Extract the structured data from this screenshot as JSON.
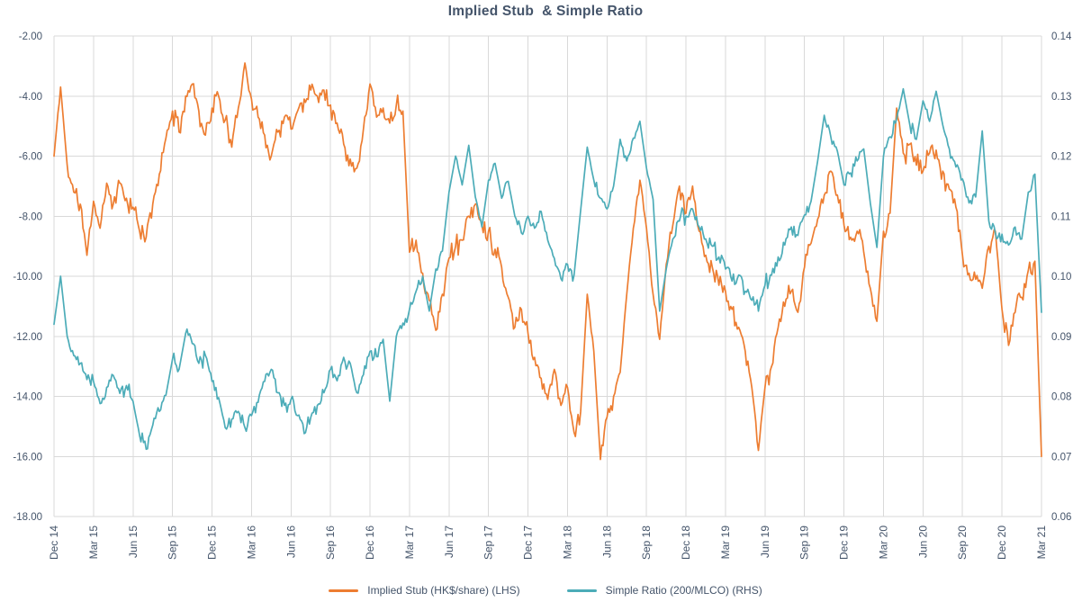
{
  "chart_data": {
    "type": "line",
    "title": "Implied Stub  & Simple Ratio",
    "x_resolution": "2 points per month, Dec 2014 - Mar 2021",
    "x_tick_labels": [
      "Dec 14",
      "Mar 15",
      "Jun 15",
      "Sep 15",
      "Dec 15",
      "Mar 16",
      "Jun 16",
      "Sep 16",
      "Dec 16",
      "Mar 17",
      "Jun 17",
      "Sep 17",
      "Dec 17",
      "Mar 18",
      "Jun 18",
      "Sep 18",
      "Dec 18",
      "Mar 19",
      "Jun 19",
      "Sep 19",
      "Dec 19",
      "Mar 20",
      "Jun 20",
      "Sep 20",
      "Dec 20",
      "Mar 21"
    ],
    "lhs_axis": {
      "tick_labels": [
        "-2.00",
        "-4.00",
        "-6.00",
        "-8.00",
        "-10.00",
        "-12.00",
        "-14.00",
        "-16.00",
        "-18.00"
      ],
      "max": -2,
      "min": -18
    },
    "rhs_axis": {
      "tick_labels": [
        "0.14",
        "0.13",
        "0.12",
        "0.11",
        "0.10",
        "0.09",
        "0.08",
        "0.07",
        "0.06"
      ],
      "max": 0.14,
      "min": 0.06
    },
    "grid": true,
    "legend_position": "bottom",
    "colors": {
      "grid": "#D9D9D9",
      "text": "#44546A",
      "background": "#FFFFFF",
      "implied_stub": "#ED7D31",
      "simple_ratio": "#4CACB8"
    },
    "series": [
      {
        "name": "Implied Stub (HK$/share) (LHS)",
        "axis": "lhs",
        "color": "#ED7D31",
        "values": [
          -6.0,
          -3.7,
          -6.3,
          -7.2,
          -7.6,
          -9.3,
          -7.5,
          -8.4,
          -6.9,
          -7.6,
          -6.9,
          -7.4,
          -7.7,
          -8.5,
          -8.7,
          -7.6,
          -6.6,
          -5.4,
          -4.5,
          -5.2,
          -4.0,
          -3.6,
          -4.5,
          -5.3,
          -4.4,
          -4.0,
          -4.8,
          -5.7,
          -4.4,
          -2.9,
          -4.1,
          -4.7,
          -5.3,
          -6.0,
          -5.2,
          -4.7,
          -5.1,
          -4.5,
          -4.1,
          -3.8,
          -4.0,
          -3.8,
          -4.3,
          -4.9,
          -5.6,
          -6.1,
          -6.4,
          -5.1,
          -3.6,
          -4.7,
          -4.4,
          -4.9,
          -4.3,
          -4.5,
          -9.2,
          -8.8,
          -9.9,
          -10.8,
          -11.8,
          -10.6,
          -9.4,
          -9.0,
          -8.8,
          -8.0,
          -7.6,
          -8.3,
          -8.5,
          -9.1,
          -9.7,
          -10.7,
          -11.7,
          -11.1,
          -11.9,
          -12.7,
          -13.4,
          -14.1,
          -13.1,
          -14.3,
          -13.7,
          -15.2,
          -14.5,
          -10.6,
          -12.5,
          -16.1,
          -14.7,
          -14.0,
          -13.2,
          -10.6,
          -8.4,
          -6.8,
          -8.4,
          -10.6,
          -12.1,
          -9.6,
          -8.3,
          -7.0,
          -7.9,
          -7.0,
          -8.5,
          -9.3,
          -9.7,
          -10.3,
          -10.5,
          -11.1,
          -11.7,
          -12.5,
          -13.7,
          -15.8,
          -13.7,
          -13.0,
          -11.7,
          -11.0,
          -10.5,
          -11.2,
          -9.7,
          -8.9,
          -8.1,
          -7.3,
          -6.5,
          -7.3,
          -8.3,
          -8.7,
          -8.5,
          -9.2,
          -10.4,
          -11.5,
          -8.5,
          -7.9,
          -4.4,
          -5.9,
          -5.6,
          -6.3,
          -6.5,
          -5.9,
          -5.8,
          -6.5,
          -7.1,
          -7.7,
          -9.3,
          -9.9,
          -10.1,
          -10.4,
          -9.0,
          -8.5,
          -11.1,
          -12.3,
          -11.2,
          -10.7,
          -9.8,
          -9.5,
          -16.0
        ]
      },
      {
        "name": "Simple Ratio (200/MLCO) (RHS)",
        "axis": "rhs",
        "color": "#4CACB8",
        "values": [
          0.092,
          0.1,
          0.09,
          0.0868,
          0.0855,
          0.0828,
          0.0825,
          0.0788,
          0.0815,
          0.0835,
          0.0805,
          0.0818,
          0.0792,
          0.0735,
          0.0712,
          0.0752,
          0.0775,
          0.0802,
          0.0862,
          0.0845,
          0.0905,
          0.0888,
          0.0855,
          0.0868,
          0.0825,
          0.0798,
          0.0748,
          0.0762,
          0.0775,
          0.0748,
          0.0768,
          0.079,
          0.0825,
          0.0845,
          0.0806,
          0.0785,
          0.0795,
          0.0768,
          0.0738,
          0.0765,
          0.0785,
          0.0806,
          0.0845,
          0.0826,
          0.0865,
          0.0855,
          0.0806,
          0.0836,
          0.0875,
          0.0866,
          0.0895,
          0.0792,
          0.09,
          0.0922,
          0.0945,
          0.0975,
          0.1,
          0.0942,
          0.1012,
          0.1042,
          0.114,
          0.12,
          0.1152,
          0.1218,
          0.1132,
          0.1082,
          0.116,
          0.1188,
          0.113,
          0.1158,
          0.11,
          0.1072,
          0.11,
          0.108,
          0.1108,
          0.106,
          0.103,
          0.0996,
          0.102,
          0.1002,
          0.111,
          0.1215,
          0.116,
          0.113,
          0.1112,
          0.115,
          0.1228,
          0.1192,
          0.123,
          0.1258,
          0.118,
          0.1128,
          0.0942,
          0.1012,
          0.1062,
          0.1092,
          0.11,
          0.1112,
          0.1082,
          0.1062,
          0.105,
          0.1032,
          0.1012,
          0.0992,
          0.1002,
          0.0975,
          0.096,
          0.0942,
          0.0985,
          0.1002,
          0.1032,
          0.1052,
          0.1082,
          0.1068,
          0.1102,
          0.1125,
          0.1192,
          0.1268,
          0.1232,
          0.1208,
          0.1152,
          0.1172,
          0.1192,
          0.1212,
          0.1122,
          0.1048,
          0.12,
          0.1232,
          0.1262,
          0.1312,
          0.1252,
          0.1228,
          0.1292,
          0.1258,
          0.1308,
          0.1252,
          0.1212,
          0.1182,
          0.1162,
          0.1122,
          0.1132,
          0.1242,
          0.1092,
          0.1072,
          0.107,
          0.1052,
          0.1082,
          0.1062,
          0.114,
          0.117,
          0.094
        ]
      }
    ],
    "render_noise": {
      "seed": 11,
      "substeps": 5,
      "amplitude_lhs": 0.36,
      "amplitude_rhs": 0.0016
    }
  }
}
